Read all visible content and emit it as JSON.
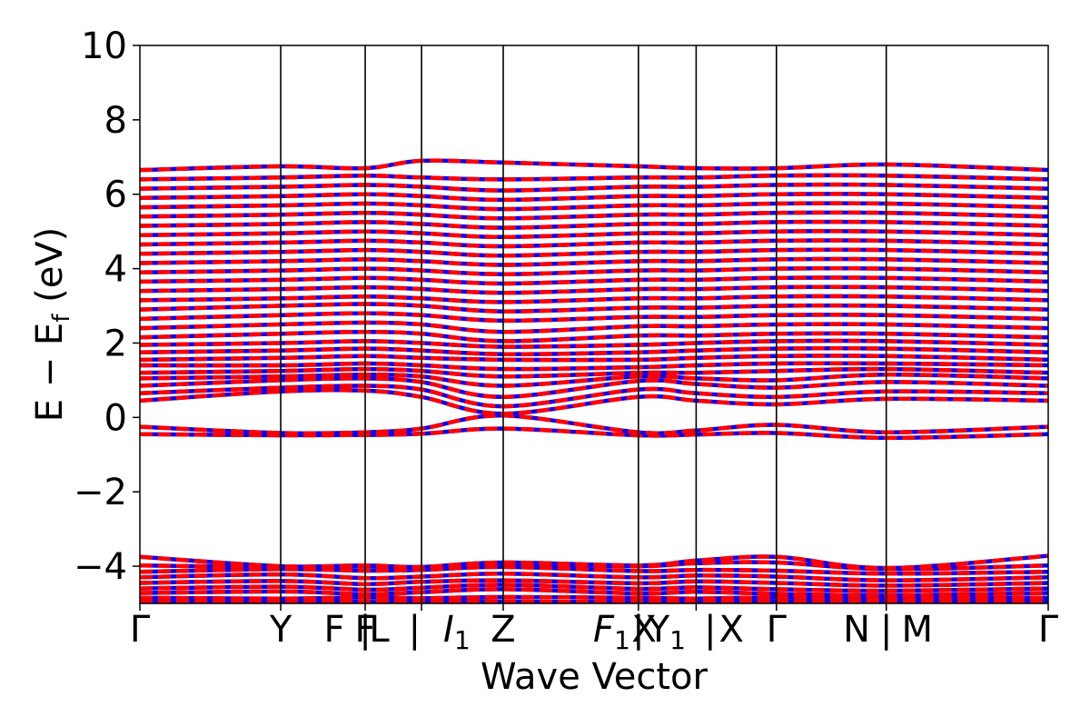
{
  "chart_data": {
    "type": "line",
    "title": "",
    "xlabel": "Wave Vector",
    "ylabel": "E − E",
    "ylabel_sub": "f",
    "ylabel_unit": " (eV)",
    "ylim": [
      -5,
      10
    ],
    "yticks": [
      "10",
      "8",
      "6",
      "4",
      "2",
      "0",
      "−2",
      "−4"
    ],
    "ytick_values": [
      10,
      8,
      6,
      4,
      2,
      0,
      -2,
      -4
    ],
    "grid": false,
    "legend": "none",
    "kpath_positions": [
      0,
      1,
      1.6,
      2.0,
      2.58,
      3.54,
      3.95,
      4.52,
      5.3,
      6.45
    ],
    "kpath_max": 6.45,
    "high_symmetry_labels": [
      {
        "text": "Γ",
        "pos": 0
      },
      {
        "text": "Y",
        "pos": 1
      },
      {
        "text": "F",
        "pos": 1.38
      },
      {
        "text": "F",
        "pos": 1.6
      },
      {
        "text": "L",
        "pos": 1.7
      },
      {
        "text": "|",
        "pos": 1.6
      },
      {
        "text": "|",
        "pos": 1.95
      },
      {
        "text": "I",
        "sub": "1",
        "italic": true,
        "pos": 2.25
      },
      {
        "text": "Z",
        "pos": 2.58
      },
      {
        "text": "F",
        "sub": "1",
        "italic": true,
        "pos": 3.35
      },
      {
        "text": "|",
        "pos": 3.54
      },
      {
        "text": "X",
        "pos": 3.58
      },
      {
        "text": "Y",
        "sub": "1",
        "pos": 3.74
      },
      {
        "text": "|",
        "pos": 4.05
      },
      {
        "text": "X",
        "pos": 4.2
      },
      {
        "text": "Γ",
        "pos": 4.52
      },
      {
        "text": "N",
        "pos": 5.09
      },
      {
        "text": "|",
        "pos": 5.3
      },
      {
        "text": "M",
        "pos": 5.52
      },
      {
        "text": "Γ",
        "pos": 6.45
      }
    ],
    "series": [
      {
        "color": "#0000ff",
        "style": "solid"
      },
      {
        "color": "#ff0000",
        "style": "dashed"
      }
    ],
    "bands": [
      {
        "y": [
          -4.95,
          -4.93,
          -4.96,
          -4.94,
          -4.95,
          -4.96,
          -4.93,
          -4.95,
          -4.96,
          -4.94
        ]
      },
      {
        "y": [
          -4.85,
          -4.87,
          -4.84,
          -4.86,
          -4.83,
          -4.85,
          -4.87,
          -4.84,
          -4.86,
          -4.85
        ]
      },
      {
        "y": [
          -4.72,
          -4.68,
          -4.75,
          -4.7,
          -4.62,
          -4.73,
          -4.69,
          -4.74,
          -4.78,
          -4.72
        ]
      },
      {
        "y": [
          -4.6,
          -4.55,
          -4.63,
          -4.58,
          -4.5,
          -4.61,
          -4.57,
          -4.62,
          -4.66,
          -4.6
        ]
      },
      {
        "y": [
          -4.45,
          -4.4,
          -4.48,
          -4.42,
          -4.38,
          -4.46,
          -4.41,
          -4.45,
          -4.52,
          -4.45
        ]
      },
      {
        "y": [
          -4.3,
          -4.22,
          -4.32,
          -4.28,
          -4.2,
          -4.3,
          -4.25,
          -4.28,
          -4.38,
          -4.3
        ]
      },
      {
        "y": [
          -4.15,
          -4.08,
          -4.12,
          -4.1,
          -4.02,
          -4.13,
          -4.1,
          -4.12,
          -4.2,
          -4.15
        ]
      },
      {
        "y": [
          -3.98,
          -4.02,
          -4.0,
          -4.05,
          -3.95,
          -4.0,
          -3.92,
          -3.9,
          -4.08,
          -3.98
        ]
      },
      {
        "y": [
          -3.75,
          -4.0,
          -3.98,
          -4.02,
          -3.9,
          -3.98,
          -3.85,
          -3.75,
          -4.05,
          -3.72
        ]
      },
      {
        "y": [
          -0.45,
          -0.48,
          -0.47,
          -0.44,
          -0.3,
          -0.48,
          -0.46,
          -0.42,
          -0.55,
          -0.45
        ]
      },
      {
        "y": [
          -0.25,
          -0.42,
          -0.4,
          -0.3,
          0.05,
          -0.4,
          -0.35,
          -0.2,
          -0.4,
          -0.25
        ]
      },
      {
        "y": [
          0.45,
          0.7,
          0.72,
          0.55,
          0.1,
          0.55,
          0.45,
          0.35,
          0.5,
          0.45
        ]
      },
      {
        "y": [
          0.65,
          0.8,
          0.85,
          0.75,
          0.3,
          0.75,
          0.65,
          0.55,
          0.7,
          0.65
        ]
      },
      {
        "y": [
          0.85,
          1.0,
          1.05,
          0.95,
          0.55,
          0.98,
          0.9,
          0.8,
          0.95,
          0.85
        ]
      },
      {
        "y": [
          1.05,
          1.1,
          1.15,
          1.1,
          0.85,
          1.1,
          1.05,
          1.0,
          1.15,
          1.05
        ]
      },
      {
        "y": [
          1.2,
          1.25,
          1.3,
          1.25,
          1.1,
          1.2,
          1.2,
          1.25,
          1.3,
          1.2
        ]
      },
      {
        "y": [
          1.4,
          1.4,
          1.45,
          1.4,
          1.3,
          1.35,
          1.4,
          1.45,
          1.45,
          1.4
        ]
      },
      {
        "y": [
          1.55,
          1.6,
          1.65,
          1.6,
          1.55,
          1.55,
          1.6,
          1.65,
          1.65,
          1.55
        ]
      },
      {
        "y": [
          1.75,
          1.8,
          1.85,
          1.8,
          1.7,
          1.75,
          1.8,
          1.85,
          1.85,
          1.75
        ]
      },
      {
        "y": [
          1.95,
          2.0,
          2.05,
          2.0,
          1.9,
          1.95,
          2.0,
          2.05,
          2.05,
          1.95
        ]
      },
      {
        "y": [
          2.15,
          2.25,
          2.3,
          2.25,
          2.05,
          2.2,
          2.2,
          2.25,
          2.25,
          2.15
        ]
      },
      {
        "y": [
          2.4,
          2.5,
          2.55,
          2.5,
          2.3,
          2.45,
          2.45,
          2.5,
          2.5,
          2.4
        ]
      },
      {
        "y": [
          2.65,
          2.75,
          2.8,
          2.75,
          2.6,
          2.7,
          2.7,
          2.75,
          2.75,
          2.65
        ]
      },
      {
        "y": [
          2.9,
          3.0,
          3.05,
          3.0,
          2.85,
          2.95,
          2.95,
          3.0,
          3.0,
          2.9
        ]
      },
      {
        "y": [
          3.15,
          3.2,
          3.25,
          3.2,
          3.1,
          3.2,
          3.2,
          3.25,
          3.25,
          3.15
        ]
      },
      {
        "y": [
          3.4,
          3.45,
          3.5,
          3.45,
          3.35,
          3.45,
          3.45,
          3.5,
          3.5,
          3.4
        ]
      },
      {
        "y": [
          3.65,
          3.7,
          3.75,
          3.7,
          3.6,
          3.7,
          3.7,
          3.75,
          3.75,
          3.65
        ]
      },
      {
        "y": [
          3.9,
          3.95,
          4.0,
          3.95,
          3.85,
          3.95,
          3.95,
          4.0,
          4.0,
          3.9
        ]
      },
      {
        "y": [
          4.15,
          4.2,
          4.25,
          4.2,
          4.1,
          4.2,
          4.2,
          4.25,
          4.25,
          4.15
        ]
      },
      {
        "y": [
          4.4,
          4.45,
          4.5,
          4.45,
          4.35,
          4.45,
          4.45,
          4.5,
          4.5,
          4.4
        ]
      },
      {
        "y": [
          4.65,
          4.7,
          4.75,
          4.7,
          4.6,
          4.7,
          4.7,
          4.75,
          4.75,
          4.65
        ]
      },
      {
        "y": [
          4.9,
          4.95,
          5.0,
          4.95,
          4.85,
          4.95,
          4.95,
          5.0,
          5.0,
          4.9
        ]
      },
      {
        "y": [
          5.15,
          5.2,
          5.25,
          5.2,
          5.1,
          5.2,
          5.2,
          5.25,
          5.25,
          5.15
        ]
      },
      {
        "y": [
          5.4,
          5.45,
          5.5,
          5.45,
          5.35,
          5.45,
          5.45,
          5.5,
          5.5,
          5.4
        ]
      },
      {
        "y": [
          5.65,
          5.7,
          5.75,
          5.7,
          5.6,
          5.7,
          5.7,
          5.75,
          5.75,
          5.65
        ]
      },
      {
        "y": [
          5.9,
          5.95,
          6.0,
          5.95,
          5.85,
          5.95,
          5.95,
          6.0,
          6.0,
          5.9
        ]
      },
      {
        "y": [
          6.15,
          6.2,
          6.25,
          6.2,
          6.1,
          6.2,
          6.2,
          6.25,
          6.25,
          6.15
        ]
      },
      {
        "y": [
          6.4,
          6.45,
          6.5,
          6.45,
          6.4,
          6.45,
          6.45,
          6.5,
          6.5,
          6.4
        ]
      },
      {
        "y": [
          6.65,
          6.75,
          6.7,
          6.9,
          6.85,
          6.75,
          6.7,
          6.7,
          6.8,
          6.65
        ]
      }
    ]
  }
}
